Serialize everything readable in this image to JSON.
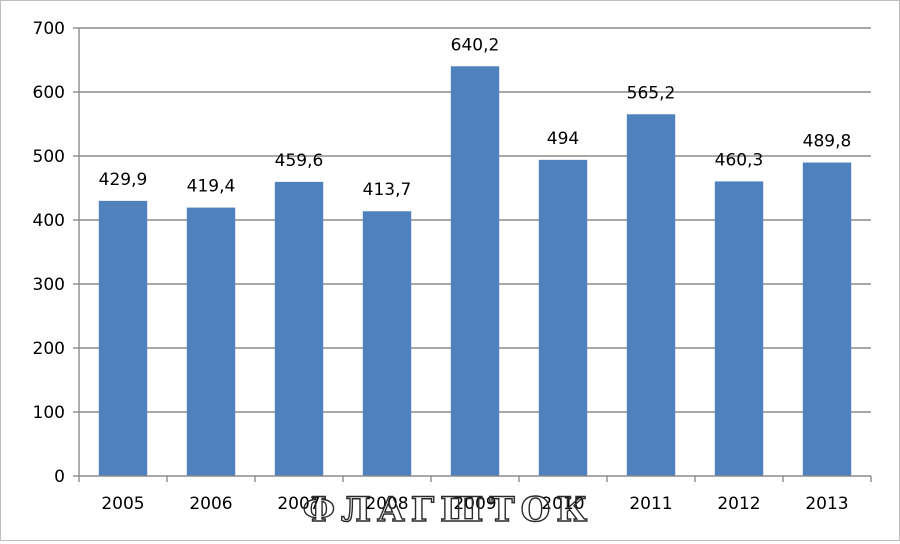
{
  "chart_data": {
    "type": "bar",
    "categories": [
      "2005",
      "2006",
      "2007",
      "2008",
      "2009",
      "2010",
      "2011",
      "2012",
      "2013"
    ],
    "values": [
      429.9,
      419.4,
      459.6,
      413.7,
      640.2,
      494,
      565.2,
      460.3,
      489.8
    ],
    "data_labels": [
      "429,9",
      "419,4",
      "459,6",
      "413,7",
      "640,2",
      "494",
      "565,2",
      "460,3",
      "489,8"
    ],
    "y_ticks": [
      0,
      100,
      200,
      300,
      400,
      500,
      600,
      700
    ],
    "ylim": [
      0,
      700
    ],
    "grid": true,
    "legend": "none",
    "bar_color": "#4f81bd",
    "gridline_color": "#8c8c8c"
  },
  "watermark": "ФЛАГШТОК"
}
